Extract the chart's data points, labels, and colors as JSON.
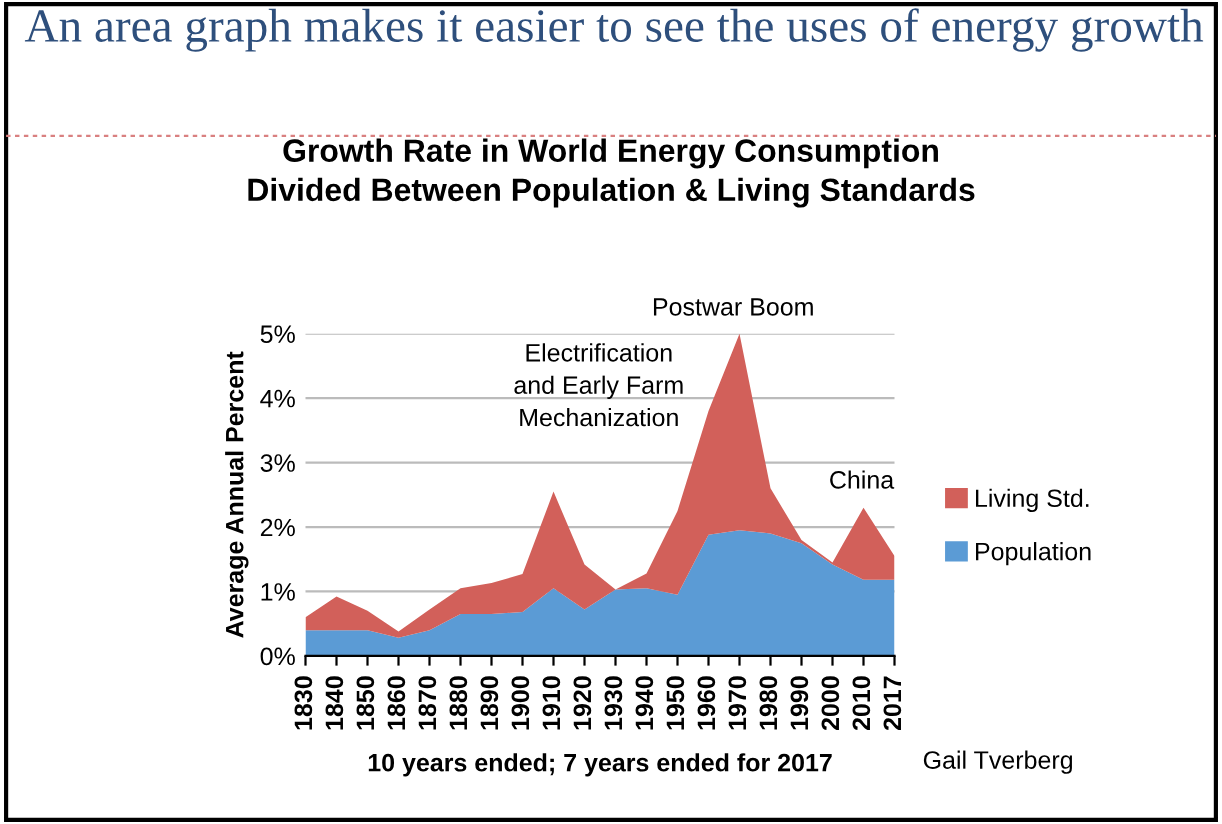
{
  "chart_data": {
    "type": "area",
    "stacked": true,
    "title": "An area graph makes it easier to see the uses of energy growth",
    "subtitle": "Growth Rate in World Energy Consumption\nDivided Between Population & Living Standards",
    "ylabel": "Average Annual Percent",
    "xlabel": "10 years ended; 7 years ended for 2017",
    "categories": [
      "1830",
      "1840",
      "1850",
      "1860",
      "1870",
      "1880",
      "1890",
      "1900",
      "1910",
      "1920",
      "1930",
      "1940",
      "1950",
      "1960",
      "1970",
      "1980",
      "1990",
      "2000",
      "2010",
      "2017"
    ],
    "series": [
      {
        "name": "Population",
        "color": "#5b9bd5",
        "values": [
          0.4,
          0.4,
          0.4,
          0.28,
          0.4,
          0.65,
          0.65,
          0.68,
          1.05,
          0.72,
          1.03,
          1.05,
          0.95,
          1.88,
          1.95,
          1.9,
          1.75,
          1.42,
          1.18,
          1.18
        ]
      },
      {
        "name": "Living Std.",
        "color": "#d2605a",
        "values": [
          0.2,
          0.52,
          0.3,
          0.1,
          0.32,
          0.4,
          0.48,
          0.59,
          1.5,
          0.7,
          0,
          0.23,
          1.3,
          1.92,
          3.05,
          0.7,
          0.05,
          0.03,
          1.12,
          0.37
        ]
      }
    ],
    "ylim": [
      0,
      5
    ],
    "yticks": [
      {
        "value": 0,
        "label": "0%"
      },
      {
        "value": 1,
        "label": "1%"
      },
      {
        "value": 2,
        "label": "2%"
      },
      {
        "value": 3,
        "label": "3%"
      },
      {
        "value": 4,
        "label": "4%"
      },
      {
        "value": 5,
        "label": "5%"
      }
    ],
    "grid": "y",
    "legend": "right",
    "annotations": [
      "Electrification\nand Early Farm\nMechanization",
      "Postwar Boom",
      "China",
      "Gail Tverberg"
    ]
  }
}
